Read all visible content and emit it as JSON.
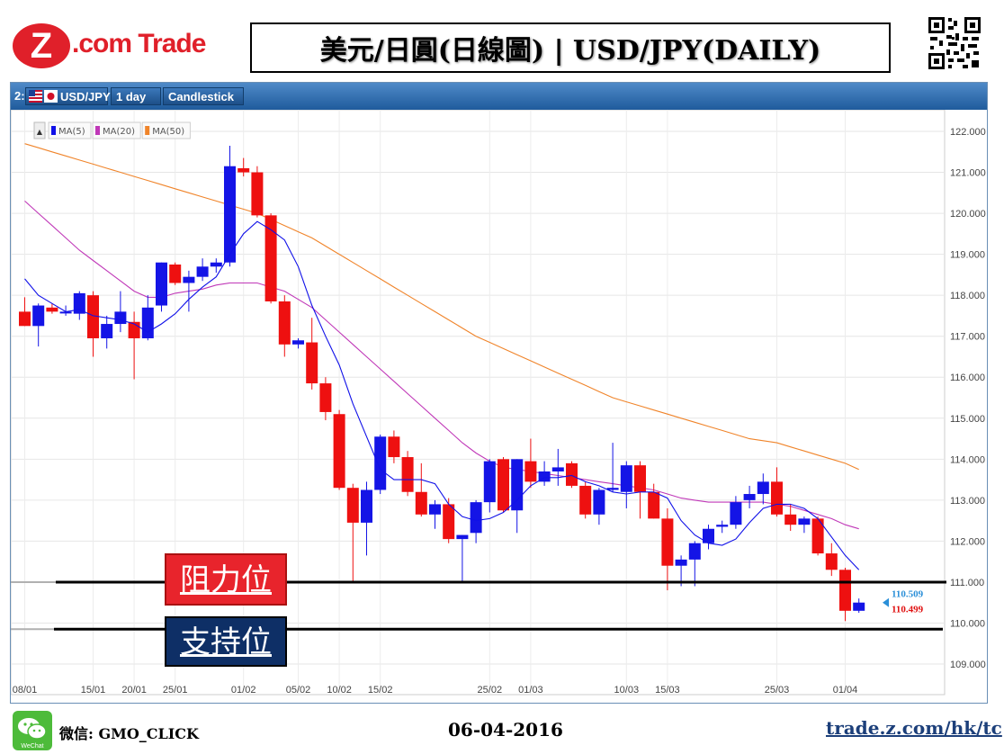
{
  "header": {
    "logo_mark": "Z",
    "logo_text": ".com Trade",
    "title": "美元/日圓(日線圖) | USD/JPY(DAILY)"
  },
  "toolbar": {
    "index": "2:",
    "symbol": "USD/JPY",
    "interval": "1 day",
    "chart_style": "Candlestick"
  },
  "legend": [
    "MA(5)",
    "MA(20)",
    "MA(50)"
  ],
  "colors": {
    "up": "#1414e6",
    "down": "#ee1010",
    "ma5": "#1010e8",
    "ma20": "#c038b8",
    "ma50": "#f0842a"
  },
  "labels": {
    "resistance": "阻力位",
    "support": "支持位"
  },
  "footer": {
    "wechat_badge": "WeChat",
    "wechat": "微信: GMO_CLICK",
    "date": "06-04-2016",
    "url": "trade.z.com/hk/tc"
  },
  "chart_data": {
    "type": "candlestick",
    "y_ticks": [
      "122.000",
      "121.000",
      "120.000",
      "119.000",
      "118.000",
      "117.000",
      "116.000",
      "115.000",
      "114.000",
      "113.000",
      "112.000",
      "111.000",
      "110.000",
      "109.000"
    ],
    "ylim": [
      108.6,
      122.4
    ],
    "x_ticks": [
      {
        "label": "08/01",
        "i": 0
      },
      {
        "label": "15/01",
        "i": 5
      },
      {
        "label": "20/01",
        "i": 8
      },
      {
        "label": "25/01",
        "i": 11
      },
      {
        "label": "01/02",
        "i": 16
      },
      {
        "label": "05/02",
        "i": 20
      },
      {
        "label": "10/02",
        "i": 23
      },
      {
        "label": "15/02",
        "i": 26
      },
      {
        "label": "25/02",
        "i": 34
      },
      {
        "label": "01/03",
        "i": 37
      },
      {
        "label": "10/03",
        "i": 44
      },
      {
        "label": "15/03",
        "i": 47
      },
      {
        "label": "25/03",
        "i": 55
      },
      {
        "label": "01/04",
        "i": 60
      }
    ],
    "candles": [
      [
        117.6,
        117.95,
        117.25,
        117.25
      ],
      [
        117.25,
        117.8,
        116.75,
        117.75
      ],
      [
        117.7,
        117.8,
        117.55,
        117.6
      ],
      [
        117.6,
        117.75,
        117.5,
        117.6
      ],
      [
        117.55,
        118.1,
        117.4,
        118.05
      ],
      [
        118.0,
        118.1,
        116.5,
        116.95
      ],
      [
        116.95,
        117.5,
        116.7,
        117.3
      ],
      [
        117.3,
        118.1,
        117.1,
        117.6
      ],
      [
        117.35,
        117.6,
        115.95,
        116.95
      ],
      [
        116.95,
        118.0,
        116.9,
        117.7
      ],
      [
        117.75,
        118.8,
        117.6,
        118.8
      ],
      [
        118.75,
        118.8,
        118.25,
        118.3
      ],
      [
        118.3,
        118.6,
        117.6,
        118.45
      ],
      [
        118.45,
        118.9,
        118.35,
        118.7
      ],
      [
        118.7,
        118.9,
        118.55,
        118.8
      ],
      [
        118.8,
        121.65,
        118.7,
        121.15
      ],
      [
        121.1,
        121.35,
        120.9,
        121.0
      ],
      [
        121.0,
        121.15,
        119.9,
        119.95
      ],
      [
        119.95,
        120.0,
        117.8,
        117.85
      ],
      [
        117.85,
        118.0,
        116.5,
        116.8
      ],
      [
        116.8,
        116.95,
        116.7,
        116.9
      ],
      [
        116.85,
        117.45,
        115.7,
        115.85
      ],
      [
        115.85,
        116.0,
        114.95,
        115.15
      ],
      [
        115.1,
        115.2,
        113.25,
        113.3
      ],
      [
        113.3,
        113.4,
        111.0,
        112.45
      ],
      [
        112.45,
        113.45,
        111.65,
        113.25
      ],
      [
        113.25,
        114.6,
        113.15,
        114.55
      ],
      [
        114.55,
        114.7,
        113.9,
        114.05
      ],
      [
        114.05,
        114.2,
        113.1,
        113.2
      ],
      [
        113.2,
        113.9,
        112.6,
        112.65
      ],
      [
        112.65,
        113.0,
        112.3,
        112.9
      ],
      [
        112.9,
        113.05,
        111.95,
        112.05
      ],
      [
        112.05,
        112.15,
        111.0,
        112.15
      ],
      [
        112.2,
        113.0,
        111.95,
        112.95
      ],
      [
        112.95,
        114.0,
        112.7,
        113.95
      ],
      [
        114.0,
        114.05,
        112.7,
        112.75
      ],
      [
        112.75,
        114.0,
        112.2,
        114.0
      ],
      [
        113.95,
        114.5,
        113.3,
        113.45
      ],
      [
        113.45,
        113.95,
        113.35,
        113.7
      ],
      [
        113.7,
        114.25,
        113.35,
        113.8
      ],
      [
        113.9,
        113.95,
        113.3,
        113.35
      ],
      [
        113.35,
        113.45,
        112.55,
        112.65
      ],
      [
        112.65,
        113.3,
        112.4,
        113.25
      ],
      [
        113.25,
        114.4,
        113.2,
        113.3
      ],
      [
        113.2,
        113.95,
        112.8,
        113.85
      ],
      [
        113.85,
        113.95,
        112.55,
        113.2
      ],
      [
        113.2,
        113.4,
        112.55,
        112.55
      ],
      [
        112.55,
        112.8,
        110.8,
        111.4
      ],
      [
        111.4,
        111.65,
        110.9,
        111.55
      ],
      [
        111.55,
        112.0,
        110.9,
        111.95
      ],
      [
        111.95,
        112.4,
        111.8,
        112.3
      ],
      [
        112.35,
        112.5,
        112.2,
        112.4
      ],
      [
        112.4,
        113.1,
        112.3,
        112.95
      ],
      [
        113.0,
        113.35,
        112.8,
        113.15
      ],
      [
        113.15,
        113.65,
        112.9,
        113.45
      ],
      [
        113.45,
        113.8,
        112.6,
        112.65
      ],
      [
        112.65,
        112.9,
        112.25,
        112.4
      ],
      [
        112.4,
        112.6,
        112.2,
        112.55
      ],
      [
        112.55,
        112.6,
        111.65,
        111.7
      ],
      [
        111.7,
        111.95,
        111.15,
        111.3
      ],
      [
        111.3,
        111.35,
        110.05,
        110.3
      ],
      [
        110.3,
        110.6,
        110.25,
        110.5
      ]
    ],
    "ma5": [
      118.4,
      118.0,
      117.8,
      117.6,
      117.65,
      117.5,
      117.45,
      117.4,
      117.3,
      117.1,
      117.3,
      117.55,
      117.9,
      118.2,
      118.45,
      119.0,
      119.5,
      119.8,
      119.6,
      119.35,
      118.7,
      117.75,
      117.0,
      116.3,
      115.35,
      114.55,
      113.75,
      113.5,
      113.5,
      113.5,
      113.4,
      112.9,
      112.6,
      112.5,
      112.55,
      112.7,
      113.0,
      113.35,
      113.55,
      113.55,
      113.6,
      113.45,
      113.35,
      113.2,
      113.15,
      113.2,
      113.2,
      113.05,
      112.5,
      112.15,
      111.95,
      111.9,
      112.05,
      112.45,
      112.8,
      112.9,
      112.9,
      112.8,
      112.55,
      112.1,
      111.65,
      111.3
    ],
    "ma20": [
      120.3,
      120.0,
      119.7,
      119.4,
      119.1,
      118.85,
      118.6,
      118.35,
      118.1,
      117.95,
      117.95,
      118.05,
      118.1,
      118.15,
      118.25,
      118.3,
      118.3,
      118.3,
      118.2,
      118.1,
      117.9,
      117.7,
      117.4,
      117.1,
      116.8,
      116.5,
      116.2,
      115.9,
      115.6,
      115.3,
      115.0,
      114.7,
      114.4,
      114.15,
      113.95,
      113.8,
      113.75,
      113.7,
      113.65,
      113.6,
      113.55,
      113.5,
      113.45,
      113.4,
      113.35,
      113.3,
      113.25,
      113.15,
      113.05,
      113.0,
      112.95,
      112.95,
      112.95,
      112.95,
      112.95,
      112.9,
      112.85,
      112.75,
      112.65,
      112.55,
      112.4,
      112.3
    ],
    "ma50": [
      121.7,
      121.6,
      121.5,
      121.4,
      121.3,
      121.2,
      121.1,
      121.0,
      120.9,
      120.8,
      120.7,
      120.6,
      120.5,
      120.4,
      120.3,
      120.2,
      120.1,
      120.0,
      119.85,
      119.7,
      119.55,
      119.4,
      119.2,
      119.0,
      118.8,
      118.6,
      118.4,
      118.2,
      118.0,
      117.8,
      117.6,
      117.4,
      117.2,
      117.0,
      116.85,
      116.7,
      116.55,
      116.4,
      116.25,
      116.1,
      115.95,
      115.8,
      115.65,
      115.5,
      115.4,
      115.3,
      115.2,
      115.1,
      115.0,
      114.9,
      114.8,
      114.7,
      114.6,
      114.5,
      114.45,
      114.4,
      114.3,
      114.2,
      114.1,
      114.0,
      113.9,
      113.75
    ],
    "price_labels": {
      "upper": "110.509",
      "lower": "110.499",
      "value": 110.5
    },
    "levels": {
      "resistance": 111.0,
      "support": 109.85
    }
  }
}
